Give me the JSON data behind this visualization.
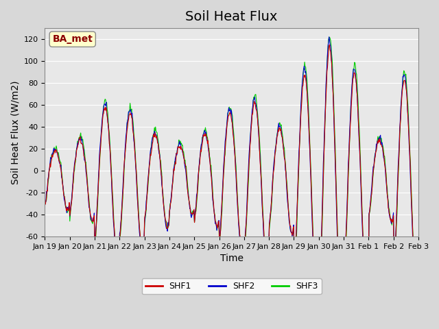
{
  "title": "Soil Heat Flux",
  "xlabel": "Time",
  "ylabel": "Soil Heat Flux (W/m2)",
  "ylim": [
    -60,
    130
  ],
  "yticks": [
    -60,
    -40,
    -20,
    0,
    20,
    40,
    60,
    80,
    100,
    120
  ],
  "xtick_labels": [
    "Jan 19",
    "Jan 20",
    "Jan 21",
    "Jan 22",
    "Jan 23",
    "Jan 24",
    "Jan 25",
    "Jan 26",
    "Jan 27",
    "Jan 28",
    "Jan 29",
    "Jan 30",
    "Jan 31",
    "Feb 1",
    "Feb 2",
    "Feb 3"
  ],
  "xtick_positions": [
    0,
    1,
    2,
    3,
    4,
    5,
    6,
    7,
    8,
    9,
    10,
    11,
    12,
    13,
    14,
    15
  ],
  "legend_labels": [
    "SHF1",
    "SHF2",
    "SHF3"
  ],
  "legend_colors": [
    "#cc0000",
    "#0000cc",
    "#00cc00"
  ],
  "line_colors": [
    "#cc0000",
    "#0000cc",
    "#00cc00"
  ],
  "annotation_text": "BA_met",
  "annotation_color": "#8b0000",
  "annotation_bg": "#ffffcc",
  "bg_color": "#e8e8e8",
  "grid_color": "#ffffff",
  "title_fontsize": 14,
  "label_fontsize": 10,
  "tick_fontsize": 8,
  "n_days": 15,
  "pts_per_day": 48,
  "day_amps": [
    18,
    28,
    58,
    52,
    33,
    22,
    33,
    53,
    62,
    38,
    88,
    113,
    88,
    28,
    83
  ]
}
